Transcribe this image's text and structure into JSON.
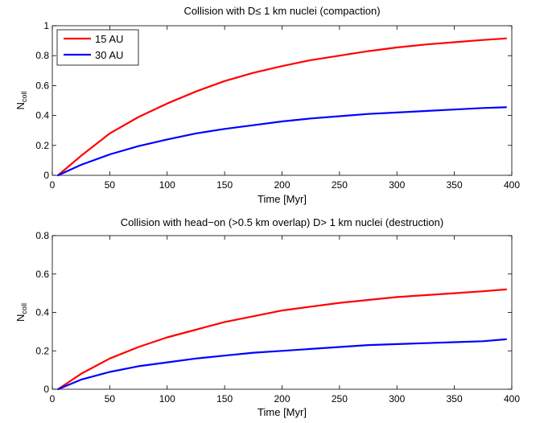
{
  "chart_data": [
    {
      "type": "line",
      "title": "Collision with D≤ 1 km nuclei (compaction)",
      "xlabel": "Time [Myr]",
      "ylabel_main": "N",
      "ylabel_sub": "coll",
      "xlim": [
        0,
        400
      ],
      "ylim": [
        0,
        1
      ],
      "xticks": [
        0,
        50,
        100,
        150,
        200,
        250,
        300,
        350,
        400
      ],
      "xtick_labels": [
        "0",
        "50",
        "100",
        "150",
        "200",
        "250",
        "300",
        "350",
        "400"
      ],
      "yticks": [
        0,
        0.2,
        0.4,
        0.6,
        0.8,
        1
      ],
      "ytick_labels": [
        "0",
        "0.2",
        "0.4",
        "0.6",
        "0.8",
        "1"
      ],
      "grid": false,
      "legend": "top-left",
      "x": [
        5,
        25,
        50,
        75,
        100,
        125,
        150,
        175,
        200,
        225,
        250,
        275,
        300,
        325,
        350,
        375,
        395
      ],
      "series": [
        {
          "name": "15 AU",
          "color": "#ff0000",
          "values": [
            0,
            0.13,
            0.28,
            0.39,
            0.48,
            0.56,
            0.63,
            0.685,
            0.73,
            0.77,
            0.8,
            0.83,
            0.855,
            0.875,
            0.89,
            0.905,
            0.915
          ]
        },
        {
          "name": "30 AU",
          "color": "#0000ff",
          "values": [
            0,
            0.07,
            0.14,
            0.195,
            0.24,
            0.28,
            0.31,
            0.335,
            0.36,
            0.38,
            0.395,
            0.41,
            0.42,
            0.43,
            0.44,
            0.45,
            0.455
          ]
        }
      ]
    },
    {
      "type": "line",
      "title": "Collision with head−on (>0.5 km overlap) D> 1 km nuclei (destruction)",
      "xlabel": "Time [Myr]",
      "ylabel_main": "N",
      "ylabel_sub": "coll",
      "xlim": [
        0,
        400
      ],
      "ylim": [
        0,
        0.8
      ],
      "xticks": [
        0,
        50,
        100,
        150,
        200,
        250,
        300,
        350,
        400
      ],
      "xtick_labels": [
        "0",
        "50",
        "100",
        "150",
        "200",
        "250",
        "300",
        "350",
        "400"
      ],
      "yticks": [
        0,
        0.2,
        0.4,
        0.6,
        0.8
      ],
      "ytick_labels": [
        "0",
        "0.2",
        "0.4",
        "0.6",
        "0.8"
      ],
      "grid": false,
      "x": [
        5,
        25,
        50,
        75,
        100,
        125,
        150,
        175,
        200,
        225,
        250,
        275,
        300,
        325,
        350,
        375,
        395
      ],
      "series": [
        {
          "color": "#ff0000",
          "values": [
            0,
            0.08,
            0.16,
            0.22,
            0.27,
            0.31,
            0.35,
            0.38,
            0.41,
            0.43,
            0.45,
            0.465,
            0.48,
            0.49,
            0.5,
            0.51,
            0.52
          ]
        },
        {
          "color": "#0000ff",
          "values": [
            0,
            0.05,
            0.09,
            0.12,
            0.14,
            0.16,
            0.175,
            0.19,
            0.2,
            0.21,
            0.22,
            0.23,
            0.235,
            0.24,
            0.245,
            0.25,
            0.26
          ]
        }
      ]
    }
  ]
}
